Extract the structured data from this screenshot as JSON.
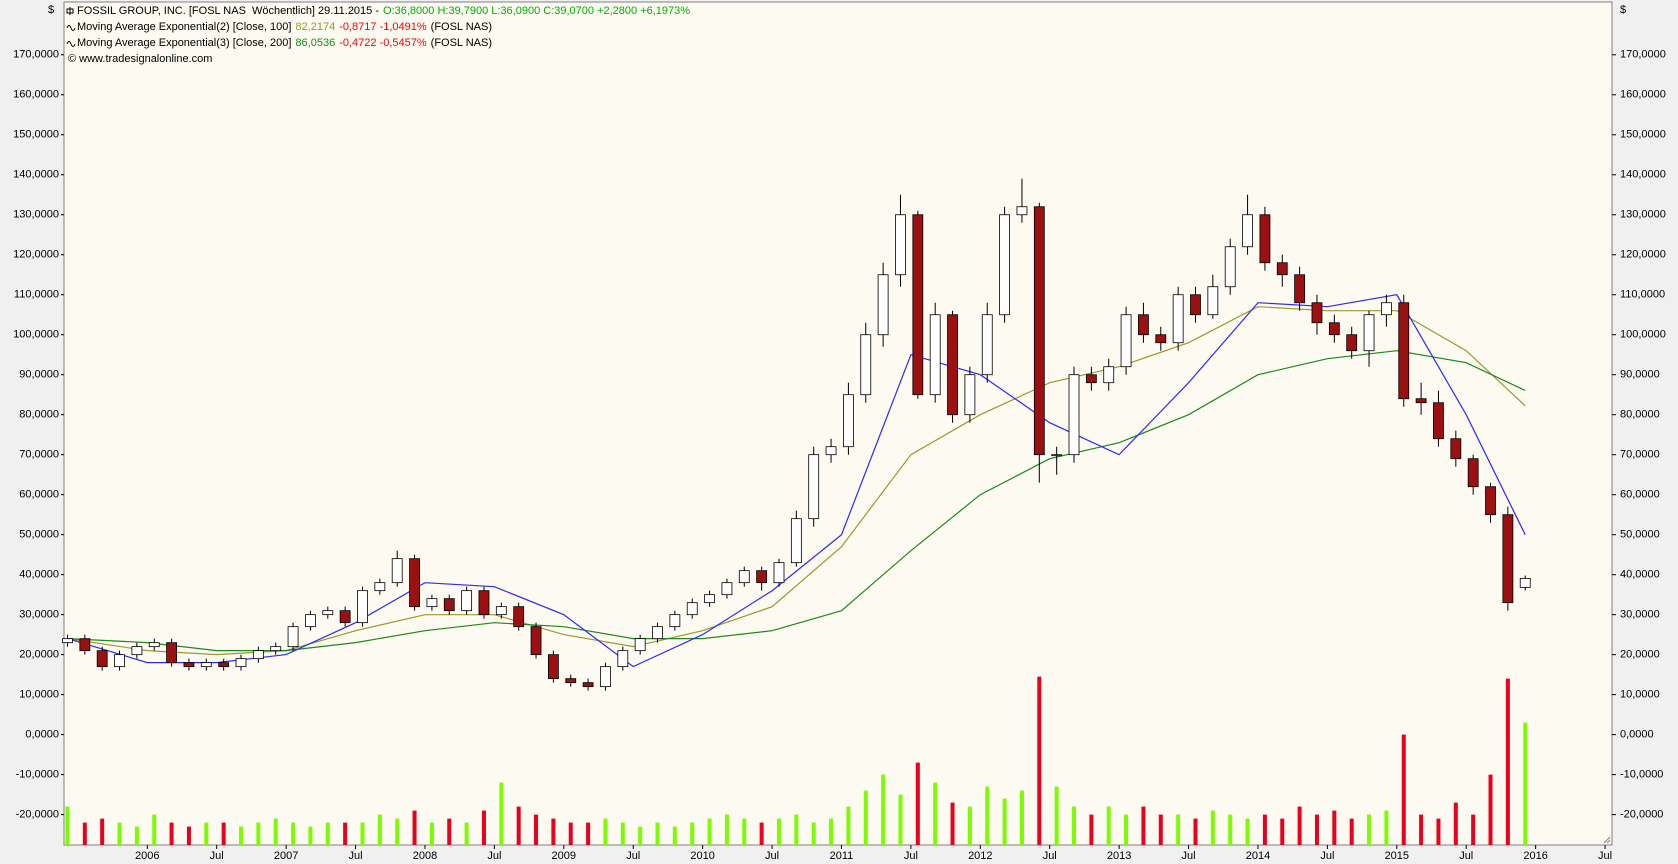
{
  "chart_data": {
    "type": "candlestick",
    "currency_symbol": "$",
    "header": {
      "symbol_line": "FOSSIL GROUP, INC. [FOSL NAS  Wöchentlich] 29.11.2015 -",
      "quote_line": "O:36,8000 H:39,7900 L:36,0900 C:39,0700 +2,2800 +6,1973%",
      "quote_color": "#00b000",
      "change_color": "#ff0000"
    },
    "copyright": "© www.tradesignalonline.com",
    "x": [
      2005.425,
      2005.55,
      2005.675,
      2005.8,
      2005.925,
      2006.05,
      2006.175,
      2006.3,
      2006.425,
      2006.55,
      2006.675,
      2006.8,
      2006.925,
      2007.05,
      2007.175,
      2007.3,
      2007.425,
      2007.55,
      2007.675,
      2007.8,
      2007.925,
      2008.05,
      2008.175,
      2008.3,
      2008.425,
      2008.55,
      2008.675,
      2008.8,
      2008.925,
      2009.05,
      2009.175,
      2009.3,
      2009.425,
      2009.55,
      2009.675,
      2009.8,
      2009.925,
      2010.05,
      2010.175,
      2010.3,
      2010.425,
      2010.55,
      2010.675,
      2010.8,
      2010.925,
      2011.05,
      2011.175,
      2011.3,
      2011.425,
      2011.55,
      2011.675,
      2011.8,
      2011.925,
      2012.05,
      2012.175,
      2012.3,
      2012.425,
      2012.55,
      2012.675,
      2012.8,
      2012.925,
      2013.05,
      2013.175,
      2013.3,
      2013.425,
      2013.55,
      2013.675,
      2013.8,
      2013.925,
      2014.05,
      2014.175,
      2014.3,
      2014.425,
      2014.55,
      2014.675,
      2014.8,
      2014.925,
      2015.05,
      2015.175,
      2015.3,
      2015.425,
      2015.55,
      2015.675,
      2015.8,
      2015.925
    ],
    "open": [
      23,
      24,
      21,
      17,
      20,
      22,
      23,
      18,
      17,
      18,
      17,
      19,
      21,
      22,
      27,
      30,
      31,
      28,
      36,
      38,
      44,
      32,
      34,
      31,
      36,
      30,
      32,
      27,
      20,
      14,
      13,
      12,
      17,
      21,
      24,
      27,
      30,
      33,
      35,
      38,
      41,
      38,
      43,
      54,
      70,
      72,
      85,
      100,
      115,
      130,
      85,
      105,
      80,
      90,
      105,
      130,
      132,
      70,
      70,
      90,
      88,
      92,
      105,
      100,
      98,
      110,
      105,
      112,
      122,
      130,
      118,
      115,
      108,
      103,
      100,
      96,
      105,
      108,
      84,
      83,
      74,
      69,
      62,
      55,
      36.8
    ],
    "high": [
      25,
      25,
      22,
      21,
      23,
      24,
      24,
      19,
      19,
      19,
      20,
      22,
      23,
      28,
      31,
      32,
      32,
      37,
      39,
      46,
      45,
      35,
      35,
      37,
      37,
      33,
      33,
      28,
      21,
      15,
      14,
      18,
      22,
      25,
      28,
      31,
      34,
      36,
      39,
      42,
      42,
      44,
      56,
      72,
      74,
      88,
      103,
      118,
      135,
      131,
      108,
      106,
      92,
      108,
      132,
      139,
      133,
      72,
      92,
      92,
      94,
      107,
      108,
      102,
      112,
      112,
      115,
      124,
      135,
      132,
      120,
      117,
      110,
      105,
      102,
      106,
      110,
      110,
      88,
      86,
      76,
      70,
      63,
      57,
      39.79
    ],
    "low": [
      22,
      20,
      16,
      16,
      19,
      21,
      17,
      16,
      16,
      16,
      16,
      18,
      20,
      21,
      26,
      29,
      27,
      27,
      35,
      37,
      31,
      31,
      30,
      30,
      29,
      29,
      26,
      19,
      13,
      12,
      11,
      11,
      16,
      20,
      23,
      26,
      29,
      32,
      34,
      37,
      36,
      37,
      42,
      52,
      68,
      70,
      83,
      97,
      112,
      84,
      83,
      78,
      78,
      88,
      103,
      128,
      63,
      65,
      68,
      86,
      86,
      90,
      98,
      96,
      96,
      103,
      104,
      110,
      120,
      116,
      112,
      106,
      100,
      98,
      94,
      92,
      102,
      82,
      80,
      72,
      67,
      60,
      53,
      31,
      36.09
    ],
    "close": [
      24,
      21,
      17,
      20,
      22,
      23,
      18,
      17,
      18,
      17,
      19,
      21,
      22,
      27,
      30,
      31,
      28,
      36,
      38,
      44,
      32,
      34,
      31,
      36,
      30,
      32,
      27,
      20,
      14,
      13,
      12,
      17,
      21,
      24,
      27,
      30,
      33,
      35,
      38,
      41,
      38,
      43,
      54,
      70,
      72,
      85,
      100,
      115,
      130,
      85,
      105,
      80,
      90,
      105,
      130,
      132,
      70,
      70,
      90,
      88,
      92,
      105,
      100,
      98,
      110,
      105,
      112,
      122,
      130,
      118,
      115,
      108,
      103,
      100,
      96,
      105,
      108,
      84,
      83,
      74,
      69,
      62,
      55,
      33,
      39.07
    ],
    "up_color": "#ffffff",
    "down_color": "#9b1010",
    "volume": {
      "values": [
        -18,
        -22,
        -21,
        -22,
        -23,
        -20,
        -22,
        -23,
        -22,
        -22,
        -23,
        -22,
        -21,
        -22,
        -23,
        -22,
        -22,
        -22,
        -20,
        -21,
        -19,
        -22,
        -21,
        -22,
        -19,
        -12,
        -18,
        -20,
        -21,
        -22,
        -22,
        -21,
        -22,
        -23,
        -22,
        -23,
        -22,
        -21,
        -20,
        -21,
        -22,
        -21,
        -20,
        -22,
        -21,
        -18,
        -14,
        -10,
        -15,
        -7,
        -12,
        -17,
        -18,
        -13,
        -16,
        -14,
        14.5,
        -13,
        -18,
        -20,
        -18,
        -20,
        -18,
        -20,
        -20,
        -21,
        -19,
        -20,
        -21,
        -20,
        -21,
        -18,
        -20,
        -19,
        -21,
        -20,
        -19,
        0,
        -20,
        -21,
        -17,
        -20,
        -10,
        14,
        3
      ],
      "up_color": "#7cfc00",
      "down_color": "#e8001c"
    },
    "lines": [
      {
        "name": "Moving Average Exponential(2) [Close, 100]",
        "last_value": "82,2174",
        "change": "-0,8717 -1,0491%",
        "symbol": "(FOSL NAS)",
        "color": "#9a9a2a",
        "x": [
          2005.425,
          2006,
          2006.5,
          2007,
          2007.5,
          2008,
          2008.5,
          2009,
          2009.5,
          2010,
          2010.5,
          2011,
          2011.5,
          2012,
          2012.5,
          2013,
          2013.5,
          2014,
          2014.5,
          2015,
          2015.5,
          2015.925
        ],
        "values": [
          24,
          21,
          20,
          21,
          26,
          30,
          30,
          25,
          22,
          26,
          32,
          47,
          70,
          80,
          88,
          92,
          98,
          107,
          106,
          106,
          96,
          82.2174
        ]
      },
      {
        "name": "Moving Average Exponential(3) [Close, 200]",
        "last_value": "86,0536",
        "change": "-0,4722 -0,5457%",
        "symbol": "(FOSL NAS)",
        "color": "#1a8a1a",
        "x": [
          2005.425,
          2006,
          2006.5,
          2007,
          2007.5,
          2008,
          2008.5,
          2009,
          2009.5,
          2010,
          2010.5,
          2011,
          2011.5,
          2012,
          2012.5,
          2013,
          2013.5,
          2014,
          2014.5,
          2015,
          2015.5,
          2015.925
        ],
        "values": [
          24,
          23,
          21,
          21,
          23,
          26,
          28,
          27,
          24,
          24,
          26,
          31,
          46,
          60,
          69,
          73,
          80,
          90,
          94,
          96,
          93,
          86.0536
        ]
      },
      {
        "color": "#2a2aff",
        "x": [
          2005.425,
          2006,
          2006.5,
          2007,
          2007.5,
          2008,
          2008.5,
          2009,
          2009.5,
          2010,
          2010.5,
          2011,
          2011.5,
          2012,
          2012.5,
          2013,
          2013.5,
          2014,
          2014.5,
          2015,
          2015.5,
          2015.925
        ],
        "values": [
          24,
          18,
          18,
          20,
          28,
          38,
          37,
          30,
          17,
          25,
          36,
          50,
          95,
          90,
          78,
          70,
          88,
          108,
          107,
          110,
          80,
          50
        ]
      }
    ],
    "xlim": [
      2005.4,
      2016.55
    ],
    "xticks": [
      2006,
      {
        "value": 2006.5,
        "label": "Jul"
      },
      2007,
      {
        "value": 2007.5,
        "label": "Jul"
      },
      2008,
      {
        "value": 2008.5,
        "label": "Jul"
      },
      2009,
      {
        "value": 2009.5,
        "label": "Jul"
      },
      2010,
      {
        "value": 2010.5,
        "label": "Jul"
      },
      2011,
      {
        "value": 2011.5,
        "label": "Jul"
      },
      2012,
      {
        "value": 2012.5,
        "label": "Jul"
      },
      2013,
      {
        "value": 2013.5,
        "label": "Jul"
      },
      2014,
      {
        "value": 2014.5,
        "label": "Jul"
      },
      2015,
      {
        "value": 2015.5,
        "label": "Jul"
      },
      2016,
      {
        "value": 2016.5,
        "label": "Jul"
      }
    ],
    "ylim": [
      -27.6,
      183.2
    ],
    "yticks": [
      {
        "value": -20,
        "label": "-20,0000"
      },
      {
        "value": -10,
        "label": "-10,0000"
      },
      {
        "value": 0,
        "label": "0,0000"
      },
      {
        "value": 10,
        "label": "10,0000"
      },
      {
        "value": 20,
        "label": "20,0000"
      },
      {
        "value": 30,
        "label": "30,0000"
      },
      {
        "value": 40,
        "label": "40,0000"
      },
      {
        "value": 50,
        "label": "50,0000"
      },
      {
        "value": 60,
        "label": "60,0000"
      },
      {
        "value": 70,
        "label": "70,0000"
      },
      {
        "value": 80,
        "label": "80,0000"
      },
      {
        "value": 90,
        "label": "90,0000"
      },
      {
        "value": 100,
        "label": "100,0000"
      },
      {
        "value": 110,
        "label": "110,0000"
      },
      {
        "value": 120,
        "label": "120,0000"
      },
      {
        "value": 130,
        "label": "130,0000"
      },
      {
        "value": 140,
        "label": "140,0000"
      },
      {
        "value": 150,
        "label": "150,0000"
      },
      {
        "value": 160,
        "label": "160,0000"
      },
      {
        "value": 170,
        "label": "170,0000"
      }
    ]
  }
}
